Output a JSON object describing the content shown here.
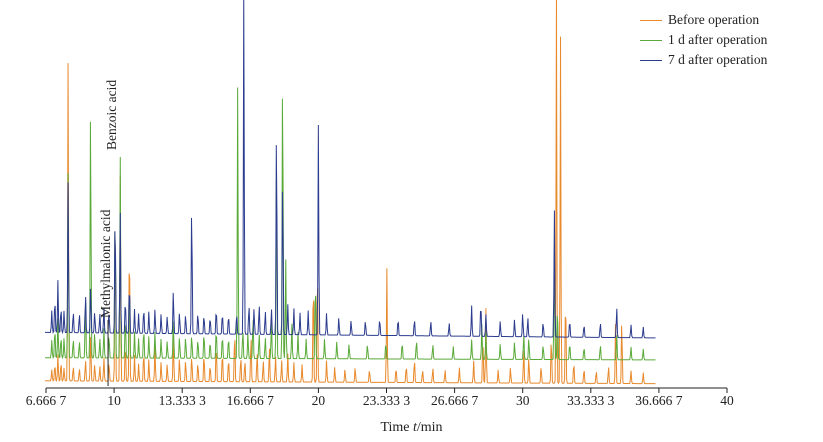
{
  "chart_data": {
    "type": "line",
    "title": "",
    "xlabel_prefix": "Time ",
    "xlabel_var": "t",
    "xlabel_unit": "/min",
    "xlim": [
      6.6667,
      40
    ],
    "x_ticks": [
      6.6667,
      10,
      13.3333,
      16.6667,
      20,
      23.3333,
      26.6667,
      30,
      33.3333,
      36.6667,
      40
    ],
    "x_tick_labels": [
      "6.666 7",
      "10",
      "13.333 3",
      "16.666 7",
      "20",
      "23.333 3",
      "26.666 7",
      "30",
      "33.333 3",
      "36.666 7",
      "40"
    ],
    "grid": false,
    "legend_position": "top-right",
    "annotations": [
      {
        "text": "Methylmalonic acid",
        "x": 9.9
      },
      {
        "text": "Benzoic acid",
        "x": 10.15
      }
    ],
    "series": [
      {
        "name": "Before operation",
        "color": "#e8892c",
        "baseline_start": 1.0,
        "baseline_end": -0.3,
        "x_end": 36.5,
        "peaks": [
          [
            6.95,
            5
          ],
          [
            7.1,
            8
          ],
          [
            7.25,
            12
          ],
          [
            7.4,
            9
          ],
          [
            7.55,
            6
          ],
          [
            7.75,
            148
          ],
          [
            8.0,
            7
          ],
          [
            8.3,
            6
          ],
          [
            8.6,
            10
          ],
          [
            8.85,
            22
          ],
          [
            9.05,
            8
          ],
          [
            9.3,
            7
          ],
          [
            9.5,
            11
          ],
          [
            9.75,
            9
          ],
          [
            10.05,
            82
          ],
          [
            10.3,
            94
          ],
          [
            10.55,
            18
          ],
          [
            10.75,
            68
          ],
          [
            11.0,
            12
          ],
          [
            11.2,
            8
          ],
          [
            11.45,
            14
          ],
          [
            11.7,
            10
          ],
          [
            12.0,
            16
          ],
          [
            12.3,
            9
          ],
          [
            12.6,
            8
          ],
          [
            12.9,
            20
          ],
          [
            13.2,
            11
          ],
          [
            13.5,
            10
          ],
          [
            13.8,
            12
          ],
          [
            14.1,
            9
          ],
          [
            14.4,
            13
          ],
          [
            14.7,
            8
          ],
          [
            15.0,
            18
          ],
          [
            15.3,
            14
          ],
          [
            15.6,
            11
          ],
          [
            15.9,
            24
          ],
          [
            16.2,
            12
          ],
          [
            16.4,
            10
          ],
          [
            16.7,
            22
          ],
          [
            17.0,
            14
          ],
          [
            17.3,
            10
          ],
          [
            17.6,
            16
          ],
          [
            17.9,
            12
          ],
          [
            18.2,
            10
          ],
          [
            18.5,
            13
          ],
          [
            18.8,
            9
          ],
          [
            19.2,
            8
          ],
          [
            19.75,
            50
          ],
          [
            19.95,
            56
          ],
          [
            20.4,
            10
          ],
          [
            20.8,
            7
          ],
          [
            21.3,
            6
          ],
          [
            21.8,
            7
          ],
          [
            22.5,
            6
          ],
          [
            23.35,
            52
          ],
          [
            23.8,
            7
          ],
          [
            24.3,
            8
          ],
          [
            24.7,
            11
          ],
          [
            25.1,
            6
          ],
          [
            25.6,
            7
          ],
          [
            26.2,
            6
          ],
          [
            26.9,
            7
          ],
          [
            27.6,
            10
          ],
          [
            28.05,
            22
          ],
          [
            28.2,
            34
          ],
          [
            28.8,
            6
          ],
          [
            29.4,
            7
          ],
          [
            30.05,
            16
          ],
          [
            30.3,
            12
          ],
          [
            30.9,
            8
          ],
          [
            31.4,
            22
          ],
          [
            31.65,
            180
          ],
          [
            31.85,
            158
          ],
          [
            32.1,
            42
          ],
          [
            32.5,
            10
          ],
          [
            33.0,
            7
          ],
          [
            33.6,
            6
          ],
          [
            34.2,
            8
          ],
          [
            34.55,
            30
          ],
          [
            34.85,
            30
          ],
          [
            35.3,
            6
          ],
          [
            35.9,
            5
          ]
        ]
      },
      {
        "name": "1 d after operation",
        "color": "#5aaa3a",
        "baseline_start": 11.5,
        "baseline_end": 10.5,
        "x_end": 36.5,
        "peaks": [
          [
            6.95,
            8
          ],
          [
            7.1,
            14
          ],
          [
            7.25,
            18
          ],
          [
            7.4,
            10
          ],
          [
            7.55,
            9
          ],
          [
            7.75,
            86
          ],
          [
            8.0,
            9
          ],
          [
            8.3,
            8
          ],
          [
            8.6,
            28
          ],
          [
            8.85,
            118
          ],
          [
            9.05,
            12
          ],
          [
            9.3,
            9
          ],
          [
            9.5,
            14
          ],
          [
            9.75,
            11
          ],
          [
            10.05,
            72
          ],
          [
            10.3,
            92
          ],
          [
            10.55,
            20
          ],
          [
            10.75,
            38
          ],
          [
            11.0,
            12
          ],
          [
            11.2,
            9
          ],
          [
            11.45,
            14
          ],
          [
            11.7,
            10
          ],
          [
            12.0,
            12
          ],
          [
            12.3,
            9
          ],
          [
            12.6,
            8
          ],
          [
            12.9,
            18
          ],
          [
            13.2,
            10
          ],
          [
            13.5,
            10
          ],
          [
            13.8,
            11
          ],
          [
            14.1,
            9
          ],
          [
            14.4,
            12
          ],
          [
            14.7,
            8
          ],
          [
            15.0,
            14
          ],
          [
            15.3,
            11
          ],
          [
            15.6,
            10
          ],
          [
            16.05,
            125
          ],
          [
            16.3,
            14
          ],
          [
            16.55,
            12
          ],
          [
            16.8,
            20
          ],
          [
            17.1,
            12
          ],
          [
            17.4,
            10
          ],
          [
            17.7,
            18
          ],
          [
            17.95,
            95
          ],
          [
            18.25,
            142
          ],
          [
            18.4,
            46
          ],
          [
            18.7,
            16
          ],
          [
            19.0,
            12
          ],
          [
            19.4,
            9
          ],
          [
            19.85,
            38
          ],
          [
            20.3,
            9
          ],
          [
            20.9,
            8
          ],
          [
            21.5,
            7
          ],
          [
            22.4,
            7
          ],
          [
            23.3,
            8
          ],
          [
            24.1,
            8
          ],
          [
            24.8,
            9
          ],
          [
            25.6,
            7
          ],
          [
            26.6,
            6
          ],
          [
            27.5,
            9
          ],
          [
            28.0,
            16
          ],
          [
            28.2,
            12
          ],
          [
            28.9,
            7
          ],
          [
            29.6,
            8
          ],
          [
            30.05,
            12
          ],
          [
            30.3,
            10
          ],
          [
            31.0,
            7
          ],
          [
            31.55,
            52
          ],
          [
            31.7,
            26
          ],
          [
            32.3,
            8
          ],
          [
            33.0,
            6
          ],
          [
            33.8,
            7
          ],
          [
            34.6,
            12
          ],
          [
            35.3,
            6
          ],
          [
            35.9,
            5
          ]
        ]
      },
      {
        "name": "7 d after operation",
        "color": "#2c3c8e",
        "baseline_start": 23.0,
        "baseline_end": 20.5,
        "x_end": 36.5,
        "peaks": [
          [
            6.95,
            10
          ],
          [
            7.1,
            16
          ],
          [
            7.25,
            24
          ],
          [
            7.4,
            12
          ],
          [
            7.55,
            10
          ],
          [
            7.75,
            70
          ],
          [
            8.0,
            10
          ],
          [
            8.3,
            9
          ],
          [
            8.6,
            18
          ],
          [
            8.85,
            22
          ],
          [
            9.05,
            10
          ],
          [
            9.3,
            9
          ],
          [
            9.5,
            12
          ],
          [
            9.75,
            10
          ],
          [
            10.05,
            58
          ],
          [
            10.3,
            55
          ],
          [
            10.55,
            16
          ],
          [
            10.75,
            24
          ],
          [
            11.0,
            11
          ],
          [
            11.2,
            9
          ],
          [
            11.45,
            12
          ],
          [
            11.7,
            10
          ],
          [
            12.0,
            11
          ],
          [
            12.3,
            9
          ],
          [
            12.6,
            8
          ],
          [
            12.9,
            20
          ],
          [
            13.2,
            10
          ],
          [
            13.5,
            9
          ],
          [
            13.8,
            62
          ],
          [
            14.1,
            10
          ],
          [
            14.4,
            9
          ],
          [
            14.7,
            8
          ],
          [
            15.0,
            12
          ],
          [
            15.3,
            10
          ],
          [
            15.6,
            9
          ],
          [
            16.0,
            10
          ],
          [
            16.35,
            160
          ],
          [
            16.6,
            14
          ],
          [
            16.85,
            12
          ],
          [
            17.1,
            14
          ],
          [
            17.4,
            11
          ],
          [
            17.7,
            12
          ],
          [
            17.95,
            100
          ],
          [
            18.25,
            78
          ],
          [
            18.5,
            14
          ],
          [
            18.8,
            12
          ],
          [
            19.1,
            10
          ],
          [
            19.5,
            11
          ],
          [
            20.0,
            96
          ],
          [
            20.4,
            10
          ],
          [
            21.0,
            8
          ],
          [
            21.6,
            7
          ],
          [
            22.3,
            7
          ],
          [
            23.0,
            8
          ],
          [
            23.9,
            8
          ],
          [
            24.7,
            8
          ],
          [
            25.5,
            7
          ],
          [
            26.4,
            6
          ],
          [
            27.5,
            14
          ],
          [
            27.95,
            16
          ],
          [
            28.2,
            10
          ],
          [
            28.9,
            7
          ],
          [
            29.6,
            8
          ],
          [
            30.0,
            11
          ],
          [
            30.25,
            9
          ],
          [
            31.0,
            7
          ],
          [
            31.55,
            58
          ],
          [
            32.3,
            8
          ],
          [
            33.0,
            6
          ],
          [
            33.8,
            7
          ],
          [
            34.6,
            14
          ],
          [
            35.3,
            6
          ],
          [
            35.9,
            5
          ]
        ]
      }
    ]
  }
}
